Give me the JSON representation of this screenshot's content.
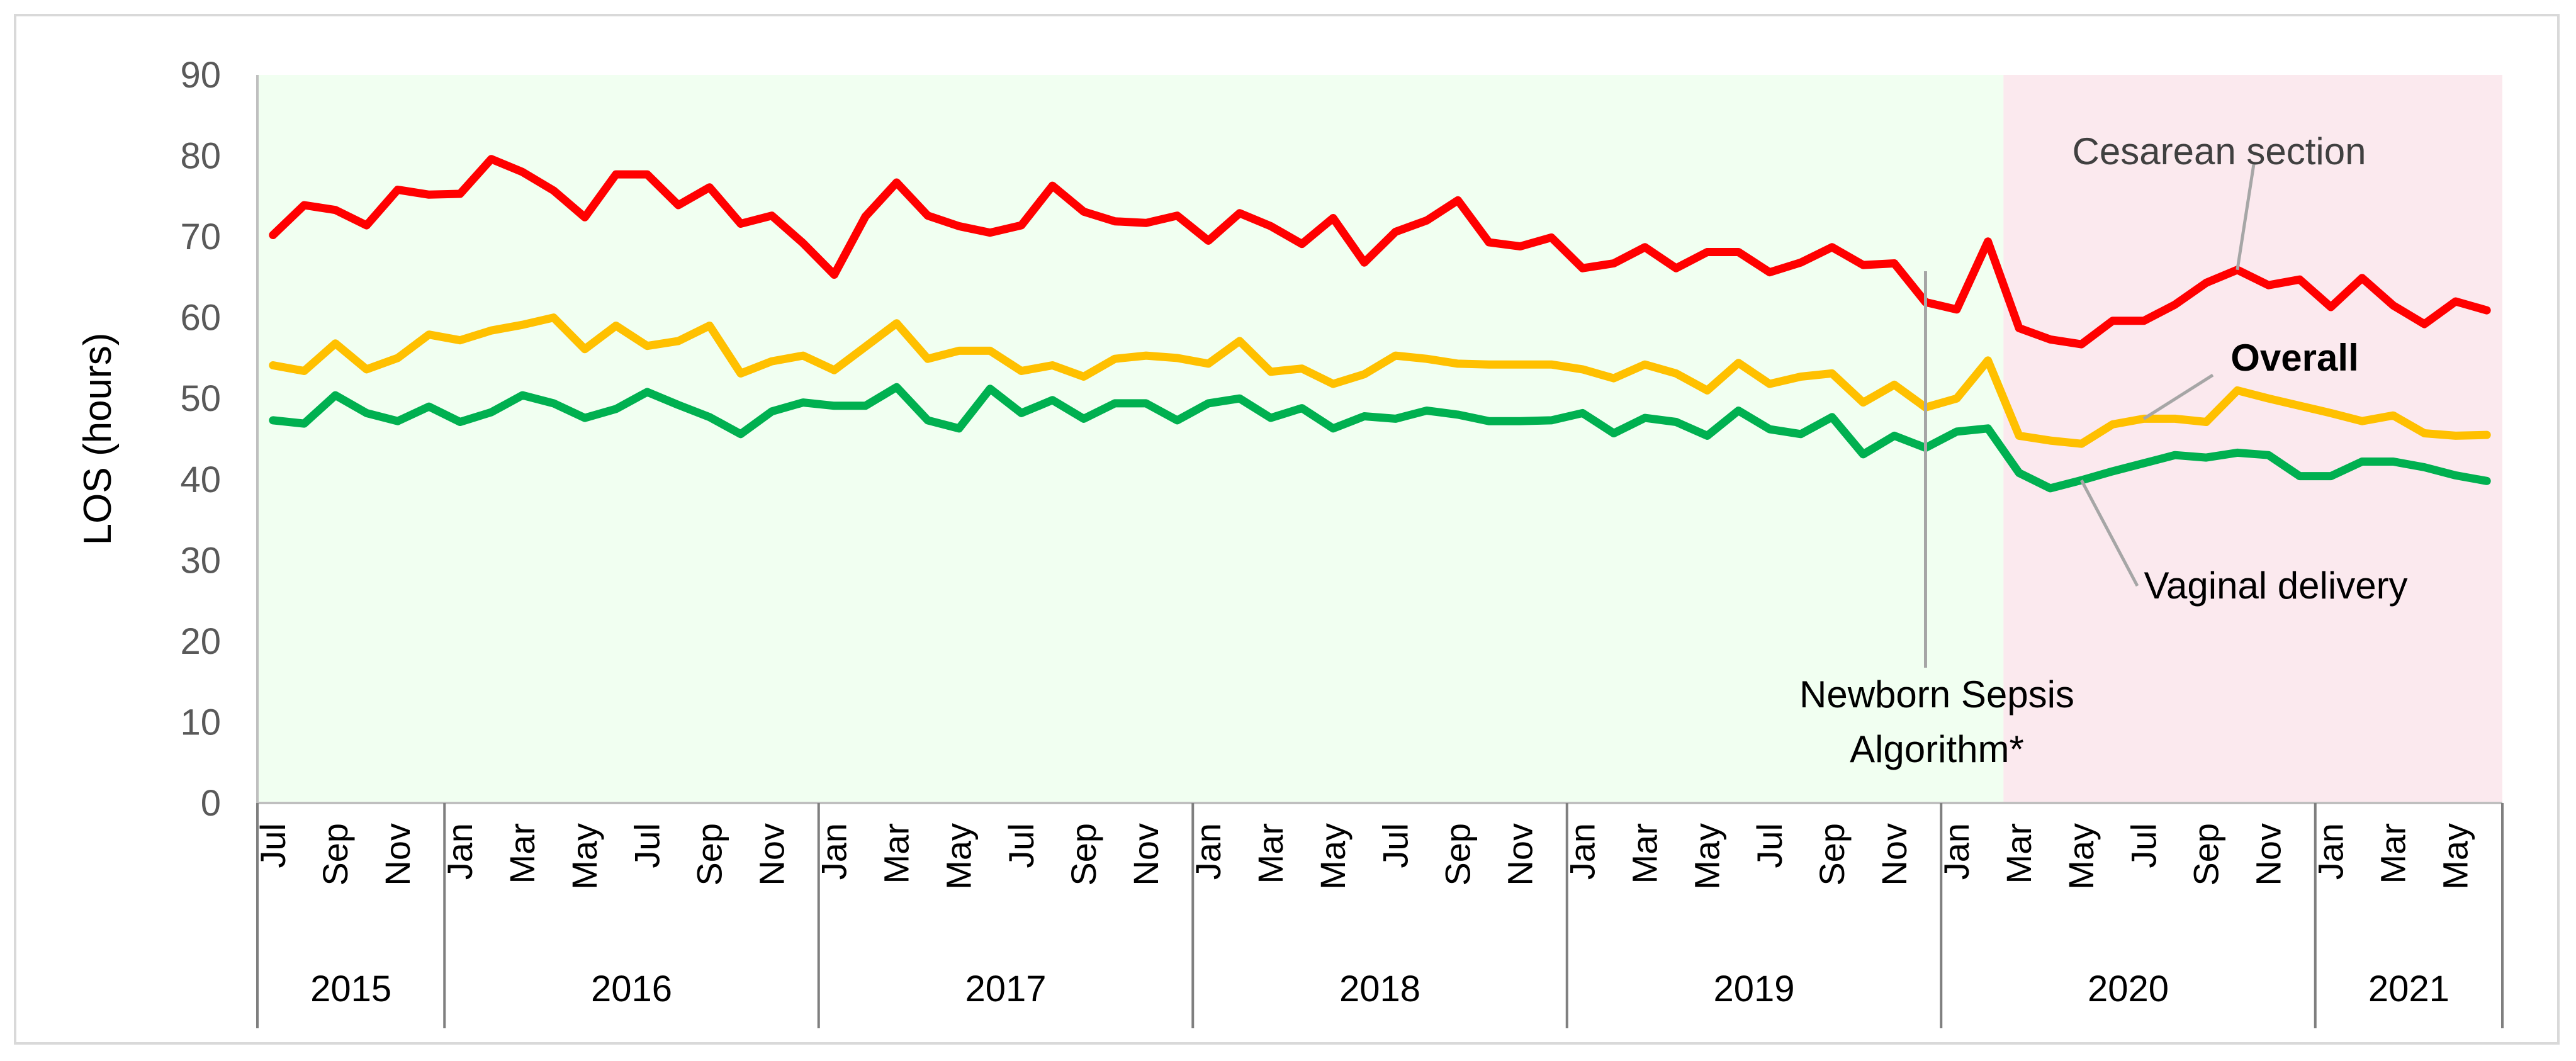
{
  "chart_data": {
    "type": "line",
    "title": "",
    "ylabel": "LOS (hours)",
    "xlabel": "",
    "ylim": [
      0,
      90
    ],
    "yticks": [
      0,
      10,
      20,
      30,
      40,
      50,
      60,
      70,
      80,
      90
    ],
    "grid": false,
    "x": [
      "2015-07",
      "2015-08",
      "2015-09",
      "2015-10",
      "2015-11",
      "2015-12",
      "2016-01",
      "2016-02",
      "2016-03",
      "2016-04",
      "2016-05",
      "2016-06",
      "2016-07",
      "2016-08",
      "2016-09",
      "2016-10",
      "2016-11",
      "2016-12",
      "2017-01",
      "2017-02",
      "2017-03",
      "2017-04",
      "2017-05",
      "2017-06",
      "2017-07",
      "2017-08",
      "2017-09",
      "2017-10",
      "2017-11",
      "2017-12",
      "2018-01",
      "2018-02",
      "2018-03",
      "2018-04",
      "2018-05",
      "2018-06",
      "2018-07",
      "2018-08",
      "2018-09",
      "2018-10",
      "2018-11",
      "2018-12",
      "2019-01",
      "2019-02",
      "2019-03",
      "2019-04",
      "2019-05",
      "2019-06",
      "2019-07",
      "2019-08",
      "2019-09",
      "2019-10",
      "2019-11",
      "2019-12",
      "2020-01",
      "2020-02",
      "2020-03",
      "2020-04",
      "2020-05",
      "2020-06",
      "2020-07",
      "2020-08",
      "2020-09",
      "2020-10",
      "2020-11",
      "2020-12",
      "2021-01",
      "2021-02",
      "2021-03",
      "2021-04",
      "2021-05",
      "2021-06"
    ],
    "month_tick_labels": [
      "Jul",
      "Sep",
      "Nov",
      "Jan",
      "Mar",
      "May",
      "Jul",
      "Sep",
      "Nov",
      "Jan",
      "Mar",
      "May",
      "Jul",
      "Sep",
      "Nov",
      "Jan",
      "Mar",
      "May",
      "Jul",
      "Sep",
      "Nov",
      "Jan",
      "Mar",
      "May",
      "Jul",
      "Sep",
      "Nov",
      "Jan",
      "Mar",
      "May",
      "Jul",
      "Sep",
      "Nov",
      "Jan",
      "Mar",
      "May"
    ],
    "years": [
      {
        "label": "2015",
        "months": 6
      },
      {
        "label": "2016",
        "months": 12
      },
      {
        "label": "2017",
        "months": 12
      },
      {
        "label": "2018",
        "months": 12
      },
      {
        "label": "2019",
        "months": 12
      },
      {
        "label": "2020",
        "months": 12
      },
      {
        "label": "2021",
        "months": 6
      }
    ],
    "series": [
      {
        "name": "Cesarean section",
        "color": "#ff0000",
        "values": [
          70.2,
          73.9,
          73.3,
          71.4,
          75.8,
          75.2,
          75.3,
          79.6,
          78.0,
          75.7,
          72.4,
          77.7,
          77.7,
          73.9,
          76.1,
          71.6,
          72.6,
          69.2,
          65.3,
          72.5,
          76.7,
          72.6,
          71.3,
          70.5,
          71.4,
          76.3,
          73.1,
          71.9,
          71.7,
          72.6,
          69.5,
          72.9,
          71.3,
          69.1,
          72.3,
          66.8,
          70.6,
          72.0,
          74.5,
          69.3,
          68.8,
          69.9,
          66.1,
          66.7,
          68.7,
          66.1,
          68.1,
          68.1,
          65.6,
          66.8,
          68.7,
          66.5,
          66.7,
          61.9,
          61.0,
          69.4,
          58.7,
          57.3,
          56.7,
          59.6,
          59.6,
          61.6,
          64.3,
          65.9,
          64.0,
          64.7,
          61.3,
          64.9,
          61.5,
          59.2,
          62.0,
          60.9
        ]
      },
      {
        "name": "Overall",
        "color": "#ffc000",
        "values": [
          54.1,
          53.4,
          56.8,
          53.6,
          55.0,
          57.9,
          57.2,
          58.4,
          59.1,
          60.0,
          56.1,
          59.0,
          56.5,
          57.1,
          59.0,
          53.1,
          54.6,
          55.3,
          53.5,
          56.4,
          59.3,
          54.9,
          55.9,
          55.9,
          53.4,
          54.1,
          52.7,
          54.9,
          55.3,
          55.0,
          54.3,
          57.1,
          53.3,
          53.7,
          51.8,
          53.0,
          55.3,
          54.9,
          54.3,
          54.2,
          54.2,
          54.2,
          53.6,
          52.5,
          54.2,
          53.1,
          51.0,
          54.4,
          51.8,
          52.7,
          53.1,
          49.5,
          51.7,
          48.9,
          50.0,
          54.7,
          45.4,
          44.8,
          44.4,
          46.8,
          47.5,
          47.5,
          47.1,
          51.0,
          50.0,
          49.1,
          48.2,
          47.2,
          47.9,
          45.7,
          45.4,
          45.5
        ]
      },
      {
        "name": "Vaginal delivery",
        "color": "#00b050",
        "values": [
          47.3,
          46.9,
          50.4,
          48.2,
          47.2,
          49.0,
          47.1,
          48.3,
          50.4,
          49.4,
          47.6,
          48.7,
          50.8,
          49.2,
          47.7,
          45.6,
          48.4,
          49.5,
          49.1,
          49.1,
          51.4,
          47.3,
          46.3,
          51.2,
          48.2,
          49.8,
          47.5,
          49.4,
          49.4,
          47.3,
          49.4,
          50.0,
          47.6,
          48.8,
          46.3,
          47.8,
          47.5,
          48.5,
          48.0,
          47.2,
          47.2,
          47.3,
          48.2,
          45.7,
          47.6,
          47.1,
          45.4,
          48.5,
          46.2,
          45.6,
          47.7,
          43.1,
          45.4,
          43.9,
          45.9,
          46.3,
          40.8,
          38.9,
          39.9,
          41.0,
          42.0,
          43.0,
          42.7,
          43.3,
          43.0,
          40.4,
          40.4,
          42.2,
          42.2,
          41.5,
          40.5,
          39.8
        ]
      }
    ],
    "shaded_regions": [
      {
        "start": "2015-07",
        "end": "2020-02",
        "color": "#f1fff1"
      },
      {
        "start": "2020-03",
        "end": "2021-06",
        "color": "#fbe9ee"
      }
    ],
    "annotations": [
      {
        "text": "Cesarean section",
        "series": "Cesarean section"
      },
      {
        "text": "Overall",
        "series": "Overall"
      },
      {
        "text": "Vaginal delivery",
        "series": "Vaginal delivery"
      },
      {
        "text_lines": [
          "Newborn Sepsis",
          "Algorithm*"
        ],
        "x": "2019-12"
      }
    ]
  }
}
